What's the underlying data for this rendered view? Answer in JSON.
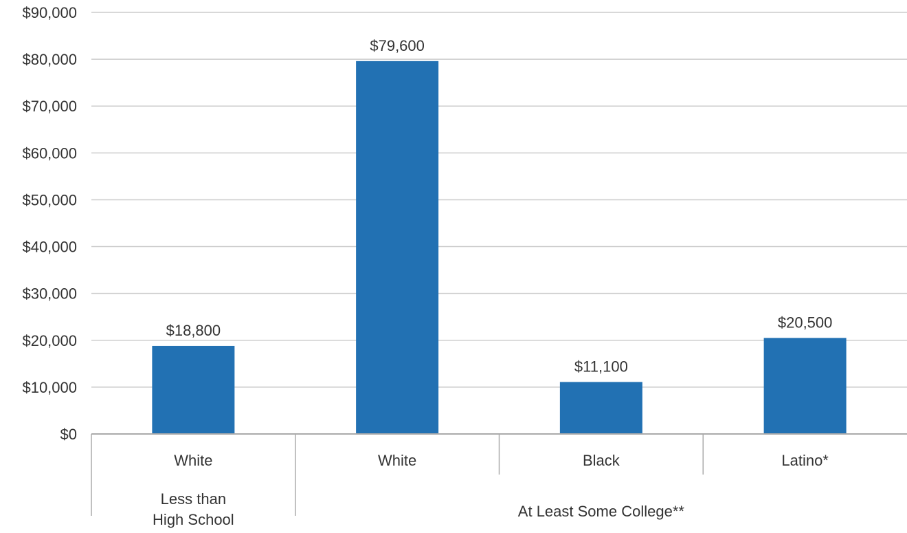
{
  "chart_data": {
    "type": "bar",
    "categories": [
      "White",
      "White",
      "Black",
      "Latino*"
    ],
    "values": [
      18800,
      79600,
      11100,
      20500
    ],
    "value_labels": [
      "$18,800",
      "$79,600",
      "$11,100",
      "$20,500"
    ],
    "groups": [
      {
        "label_lines": [
          "Less than",
          "High School"
        ],
        "category_count": 1
      },
      {
        "label_lines": [
          "At Least Some College**"
        ],
        "category_count": 3
      }
    ],
    "y_ticks": [
      0,
      10000,
      20000,
      30000,
      40000,
      50000,
      60000,
      70000,
      80000,
      90000
    ],
    "y_tick_labels": [
      "$0",
      "$10,000",
      "$20,000",
      "$30,000",
      "$40,000",
      "$50,000",
      "$60,000",
      "$70,000",
      "$80,000",
      "$90,000"
    ],
    "ylim": [
      0,
      90000
    ],
    "grid": true,
    "legend": "none",
    "bar_color": "#2271b3",
    "grid_color": "#cccccc",
    "axis_color": "#aaaaaa"
  }
}
